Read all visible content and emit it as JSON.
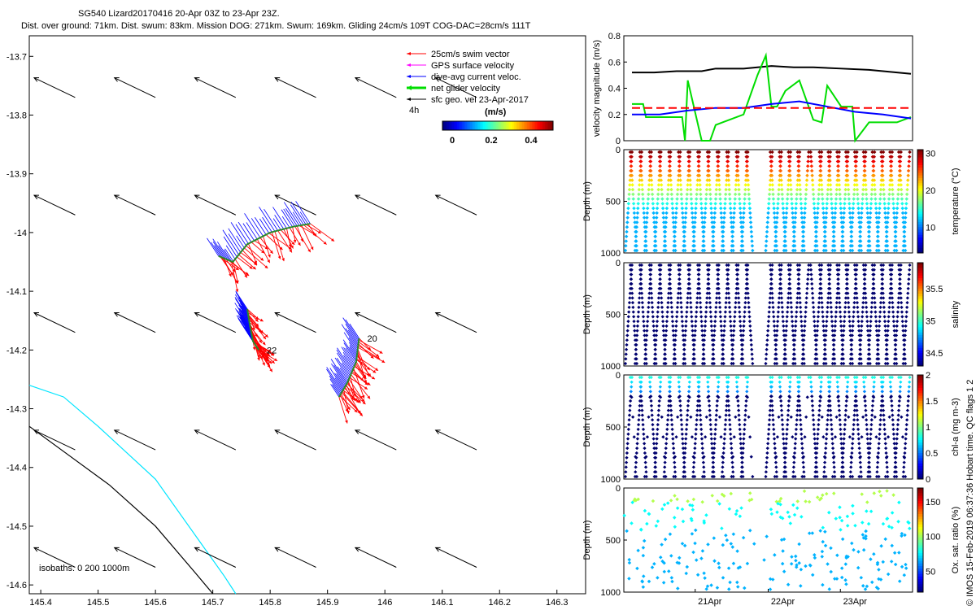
{
  "title_line1": "SG540 Lizard20170416 20-Apr 03Z to 23-Apr 23Z.",
  "title_line2": "Dist. over ground: 71km. Dist. swum: 83km. Mission DOG: 271km. Swum: 169km. Gliding 24cm/s 109T COG-DAC=28cm/s 111T",
  "footer_note": "© IMOS 15-Feb-2019 06:37:36 Hobart time. QC flags 1  2",
  "colors": {
    "swim": "#ff0000",
    "gps": "#ff00ff",
    "dac": "#0000ff",
    "net": "#00dd00",
    "sfc": "#000000",
    "isobath_200": "#00e5ff",
    "isobath_1000": "#000000"
  },
  "chart_data": [
    {
      "id": "map",
      "type": "scatter",
      "title": "",
      "xlabel": "",
      "ylabel": "",
      "xlim": [
        145.38,
        146.35
      ],
      "ylim": [
        -14.615,
        -13.665
      ],
      "xticks": [
        "145.4",
        "145.5",
        "145.6",
        "145.7",
        "145.8",
        "145.9",
        "146",
        "146.1",
        "146.2",
        "146.3"
      ],
      "xtick_values": [
        145.4,
        145.5,
        145.6,
        145.7,
        145.8,
        145.9,
        146.0,
        146.1,
        146.2,
        146.3
      ],
      "yticks": [
        "-13.7",
        "-13.8",
        "-13.9",
        "-14",
        "-14.1",
        "-14.2",
        "-14.3",
        "-14.4",
        "-14.5",
        "-14.6"
      ],
      "ytick_values": [
        -13.7,
        -13.8,
        -13.9,
        -14.0,
        -14.1,
        -14.2,
        -14.3,
        -14.4,
        -14.5,
        -14.6
      ],
      "legend": [
        {
          "label": "25cm/s swim vector",
          "color": "#ff0000"
        },
        {
          "label": "GPS surface velocity",
          "color": "#ff00ff"
        },
        {
          "label": "dive-avg current veloc.",
          "color": "#0000ff"
        },
        {
          "label": "net glider velocity",
          "color": "#00dd00"
        },
        {
          "label": "sfc geo. vel 23-Apr-2017",
          "color": "#000000"
        }
      ],
      "legend_extra": "4h",
      "colorbar": {
        "label": "(m/s)",
        "ticks": [
          "0",
          "0.2",
          "0.4"
        ],
        "range": [
          0,
          0.5
        ]
      },
      "isobaths_label": "isobaths: 0   200  1000m",
      "isobath_200": {
        "lon": [
          145.38,
          145.44,
          145.5,
          145.6,
          145.68,
          145.72,
          145.74
        ],
        "lat": [
          -14.26,
          -14.28,
          -14.33,
          -14.42,
          -14.53,
          -14.585,
          -14.615
        ]
      },
      "isobath_1000": {
        "lon": [
          145.38,
          145.45,
          145.52,
          145.6,
          145.67,
          145.7
        ],
        "lat": [
          -14.33,
          -14.38,
          -14.43,
          -14.5,
          -14.58,
          -14.615
        ]
      },
      "sfc_arrows": {
        "lons": [
          145.46,
          145.6,
          145.74,
          145.88,
          146.02,
          146.16
        ],
        "lats": [
          -13.77,
          -13.97,
          -14.17,
          -14.37,
          -14.57
        ],
        "u": -0.048,
        "v": 0.023
      },
      "track_segments": [
        {
          "lon": [
            145.71,
            145.735,
            145.76,
            145.8,
            145.84,
            145.87
          ],
          "lat": [
            -14.04,
            -14.05,
            -14.02,
            -14.0,
            -13.99,
            -13.985
          ],
          "label": ""
        },
        {
          "lon": [
            145.76,
            145.765,
            145.77,
            145.78
          ],
          "lat": [
            -14.13,
            -14.16,
            -14.185,
            -14.2
          ],
          "label": "22"
        },
        {
          "lon": [
            145.92,
            145.935,
            145.95,
            145.955
          ],
          "lat": [
            -14.28,
            -14.255,
            -14.22,
            -14.18
          ],
          "label": "20"
        }
      ],
      "track_labels": [
        "22",
        "20"
      ]
    },
    {
      "id": "velocity",
      "type": "line",
      "ylabel": "velocity magnitude (m/s)",
      "ylim": [
        0,
        0.8
      ],
      "yticks": [
        "0",
        "0.2",
        "0.4",
        "0.6",
        "0.8"
      ],
      "series": [
        {
          "name": "sfc geo",
          "color": "#000000",
          "x": [
            0,
            0.08,
            0.16,
            0.25,
            0.3,
            0.4,
            0.5,
            0.58,
            0.65,
            0.75,
            0.85,
            0.95,
            1.0
          ],
          "y": [
            0.52,
            0.52,
            0.53,
            0.53,
            0.55,
            0.55,
            0.57,
            0.56,
            0.56,
            0.55,
            0.54,
            0.52,
            0.51
          ]
        },
        {
          "name": "net glider",
          "color": "#00dd00",
          "x": [
            0,
            0.04,
            0.05,
            0.18,
            0.19,
            0.2,
            0.25,
            0.28,
            0.3,
            0.35,
            0.4,
            0.45,
            0.48,
            0.5,
            0.52,
            0.55,
            0.6,
            0.65,
            0.68,
            0.7,
            0.75,
            0.79,
            0.8,
            0.85,
            0.95,
            1.0
          ],
          "y": [
            0.28,
            0.28,
            0.18,
            0.18,
            0.0,
            0.46,
            0.0,
            0.0,
            0.12,
            0.16,
            0.2,
            0.5,
            0.65,
            0.26,
            0.26,
            0.38,
            0.46,
            0.16,
            0.14,
            0.42,
            0.26,
            0.26,
            0.0,
            0.14,
            0.14,
            0.18
          ]
        },
        {
          "name": "dive-avg current",
          "color": "#0000ff",
          "x": [
            0,
            0.1,
            0.2,
            0.3,
            0.4,
            0.5,
            0.6,
            0.7,
            0.8,
            0.9,
            1.0
          ],
          "y": [
            0.2,
            0.2,
            0.23,
            0.25,
            0.25,
            0.28,
            0.3,
            0.26,
            0.22,
            0.2,
            0.17
          ]
        },
        {
          "name": "swim",
          "color": "#ff0000",
          "x": [
            0,
            1
          ],
          "y": [
            0.25,
            0.25
          ]
        }
      ]
    },
    {
      "id": "temperature",
      "type": "scatter",
      "ylabel": "Depth (m)",
      "yticks": [
        "0",
        "500",
        "1000"
      ],
      "ylim": [
        0,
        1000
      ],
      "colorbar": {
        "label": "temperature (°C)",
        "ticks": [
          "30",
          "20",
          "10"
        ],
        "range": [
          3,
          31
        ]
      }
    },
    {
      "id": "salinity",
      "type": "scatter",
      "ylabel": "Depth (m)",
      "yticks": [
        "0",
        "500",
        "1000"
      ],
      "ylim": [
        0,
        1000
      ],
      "colorbar": {
        "label": "salinity",
        "ticks": [
          "35.5",
          "35",
          "34.5"
        ],
        "range": [
          34.3,
          35.9
        ]
      }
    },
    {
      "id": "chla",
      "type": "scatter",
      "ylabel": "Depth (m)",
      "yticks": [
        "0",
        "500",
        "1000"
      ],
      "ylim": [
        0,
        1000
      ],
      "colorbar": {
        "label": "chl-a (mg m-3)",
        "ticks": [
          "2",
          "1.5",
          "1",
          "0.5",
          "0"
        ],
        "range": [
          0,
          2
        ]
      }
    },
    {
      "id": "oxygen",
      "type": "scatter",
      "ylabel": "Depth (m)",
      "yticks": [
        "0",
        "500",
        "1000"
      ],
      "ylim": [
        0,
        1000
      ],
      "xticks": [
        "21Apr",
        "22Apr",
        "23Apr"
      ],
      "colorbar": {
        "label": "Ox. sat. ratio (%)",
        "ticks": [
          "150",
          "100",
          "50"
        ],
        "range": [
          20,
          170
        ]
      }
    }
  ]
}
